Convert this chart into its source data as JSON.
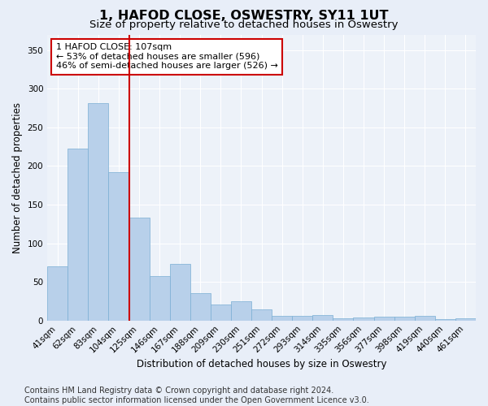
{
  "title": "1, HAFOD CLOSE, OSWESTRY, SY11 1UT",
  "subtitle": "Size of property relative to detached houses in Oswestry",
  "xlabel": "Distribution of detached houses by size in Oswestry",
  "ylabel": "Number of detached properties",
  "categories": [
    "41sqm",
    "62sqm",
    "83sqm",
    "104sqm",
    "125sqm",
    "146sqm",
    "167sqm",
    "188sqm",
    "209sqm",
    "230sqm",
    "251sqm",
    "272sqm",
    "293sqm",
    "314sqm",
    "335sqm",
    "356sqm",
    "377sqm",
    "398sqm",
    "419sqm",
    "440sqm",
    "461sqm"
  ],
  "values": [
    70,
    222,
    281,
    192,
    133,
    57,
    73,
    35,
    21,
    25,
    14,
    6,
    6,
    7,
    3,
    4,
    5,
    5,
    6,
    2,
    3
  ],
  "bar_color": "#b8d0ea",
  "bar_edge_color": "#7aafd4",
  "vline_x": 3.5,
  "vline_color": "#cc0000",
  "annotation_text": "1 HAFOD CLOSE: 107sqm\n← 53% of detached houses are smaller (596)\n46% of semi-detached houses are larger (526) →",
  "annotation_box_color": "#ffffff",
  "annotation_box_edge_color": "#cc0000",
  "ylim": [
    0,
    370
  ],
  "yticks": [
    0,
    50,
    100,
    150,
    200,
    250,
    300,
    350
  ],
  "footer": "Contains HM Land Registry data © Crown copyright and database right 2024.\nContains public sector information licensed under the Open Government Licence v3.0.",
  "bg_color": "#e8eef8",
  "plot_bg_color": "#edf2f9",
  "title_fontsize": 11.5,
  "subtitle_fontsize": 9.5,
  "axis_label_fontsize": 8.5,
  "tick_fontsize": 7.5,
  "footer_fontsize": 7,
  "annotation_fontsize": 8
}
